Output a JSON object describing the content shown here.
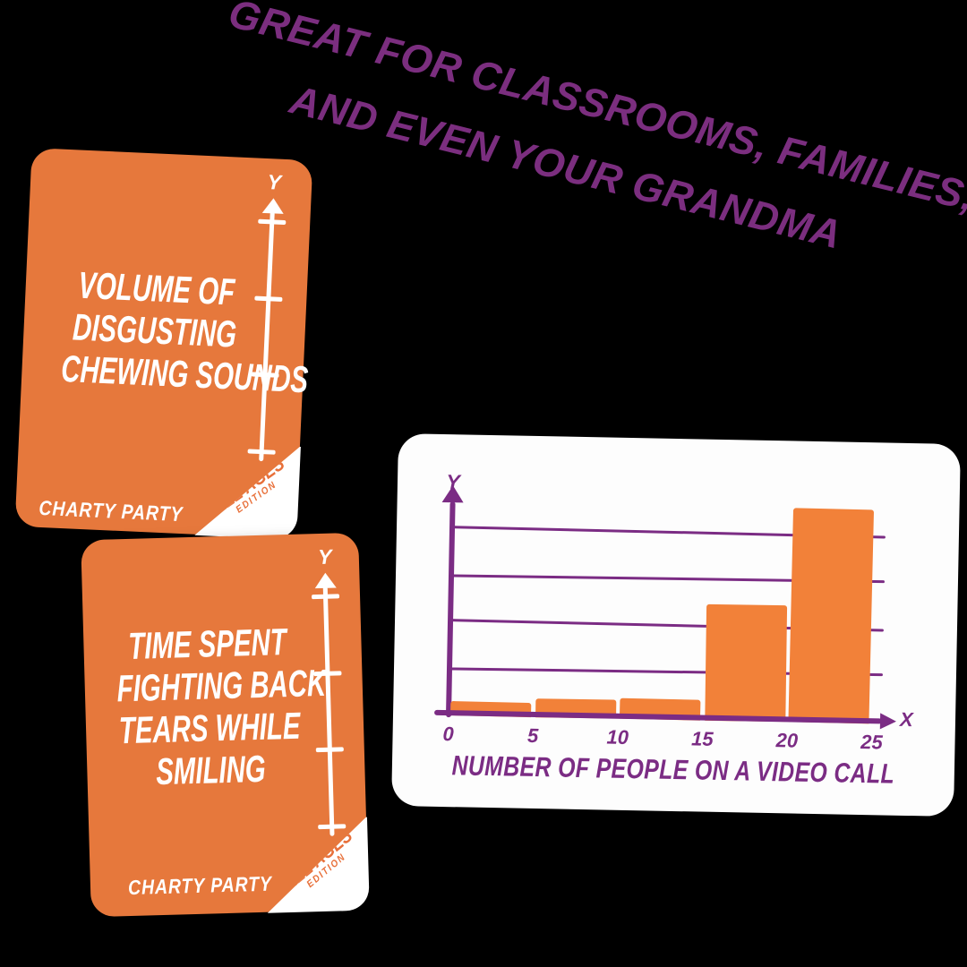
{
  "headline": {
    "line1": "GREAT FOR CLASSROOMS, FAMILIES,",
    "line2": "AND EVEN YOUR GRANDMA",
    "color": "#7B2E7F"
  },
  "cards": [
    {
      "title_lines": [
        "VOLUME OF",
        "DISGUSTING",
        "CHEWING SOUNDS"
      ],
      "brand": "CHARTY PARTY",
      "badge_line1": "ALL AGES",
      "badge_line2": "EDITION",
      "y_axis_label": "Y",
      "axis_tick_count": 4
    },
    {
      "title_lines": [
        "TIME SPENT",
        "FIGHTING BACK",
        "TEARS WHILE",
        "SMILING"
      ],
      "brand": "CHARTY PARTY",
      "badge_line1": "ALL AGES",
      "badge_line2": "EDITION",
      "y_axis_label": "Y",
      "axis_tick_count": 4
    }
  ],
  "chart_data": {
    "type": "bar",
    "title": "NUMBER OF PEOPLE ON A VIDEO CALL",
    "xlabel": "X",
    "ylabel": "Y",
    "x_tick_labels": [
      "0",
      "5",
      "10",
      "15",
      "20",
      "25"
    ],
    "categories": [
      "0-5",
      "5-10",
      "10-15",
      "15-20",
      "20-25"
    ],
    "values": [
      0.3,
      0.4,
      0.45,
      2.5,
      4.6
    ],
    "ylim": [
      0,
      5
    ],
    "gridlines_y": [
      1,
      2,
      3,
      4
    ],
    "grid": true,
    "legend": false,
    "bar_color": "#F28139",
    "axis_color": "#7B2C84"
  },
  "colors": {
    "background": "#000000",
    "card_orange": "#E6783C",
    "card_text": "#FFFFFF",
    "chart_bar_orange": "#F28139",
    "chart_purple": "#7B2C84",
    "headline_purple": "#7B2E7F",
    "badge_orange": "#E8703A"
  }
}
